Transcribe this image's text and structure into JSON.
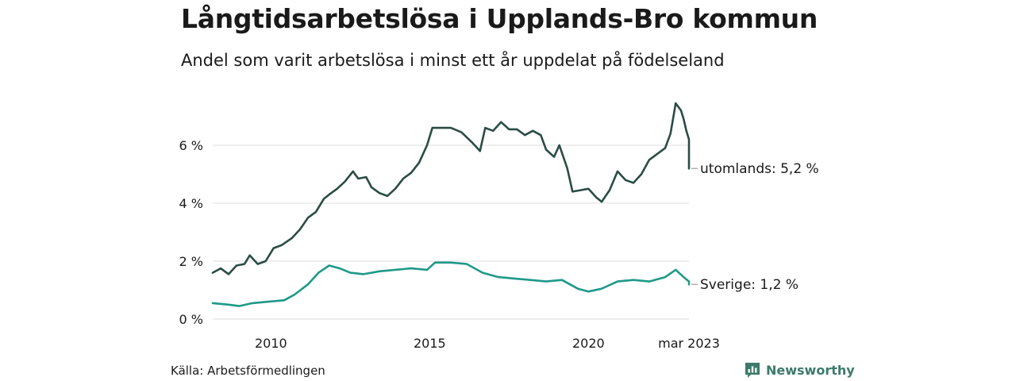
{
  "header": {
    "title": "Långtidsarbetslösa i Upplands-Bro kommun",
    "subtitle": "Andel som varit arbetslösa i minst ett år uppdelat på födelseland"
  },
  "footer": {
    "source": "Källa: Arbetsförmedlingen",
    "brand": "Newsworthy"
  },
  "colors": {
    "foreign_series": "#2b4c45",
    "sweden_series": "#1f9988",
    "grid": "#dddddd",
    "brand": "#3d7a6a"
  },
  "chart_data": {
    "type": "line",
    "x_axis": {
      "range": [
        "2008-03",
        "2023-03"
      ],
      "ticks": [
        {
          "x": "2010-01",
          "label": "2010"
        },
        {
          "x": "2015-01",
          "label": "2015"
        },
        {
          "x": "2020-01",
          "label": "2020"
        },
        {
          "x": "2023-03",
          "label": "mar 2023"
        }
      ]
    },
    "y_axis": {
      "range": [
        0,
        8
      ],
      "ticks": [
        {
          "y": 0,
          "label": "0 %"
        },
        {
          "y": 2,
          "label": "2 %"
        },
        {
          "y": 4,
          "label": "4 %"
        },
        {
          "y": 6,
          "label": "6 %"
        }
      ],
      "grid": true
    },
    "series": [
      {
        "name": "utomlands",
        "end_label": "utomlands: 5,2 %",
        "color": "#2b4c45",
        "points": [
          [
            "2008-03",
            1.6
          ],
          [
            "2008-06",
            1.75
          ],
          [
            "2008-09",
            1.55
          ],
          [
            "2008-12",
            1.85
          ],
          [
            "2009-03",
            1.9
          ],
          [
            "2009-05",
            2.2
          ],
          [
            "2009-08",
            1.9
          ],
          [
            "2009-11",
            2.0
          ],
          [
            "2010-02",
            2.45
          ],
          [
            "2010-05",
            2.55
          ],
          [
            "2010-09",
            2.8
          ],
          [
            "2010-12",
            3.1
          ],
          [
            "2011-03",
            3.5
          ],
          [
            "2011-06",
            3.7
          ],
          [
            "2011-09",
            4.15
          ],
          [
            "2011-11",
            4.3
          ],
          [
            "2012-02",
            4.5
          ],
          [
            "2012-05",
            4.75
          ],
          [
            "2012-08",
            5.1
          ],
          [
            "2012-10",
            4.85
          ],
          [
            "2013-01",
            4.9
          ],
          [
            "2013-03",
            4.55
          ],
          [
            "2013-06",
            4.35
          ],
          [
            "2013-09",
            4.25
          ],
          [
            "2013-12",
            4.5
          ],
          [
            "2014-03",
            4.85
          ],
          [
            "2014-06",
            5.05
          ],
          [
            "2014-09",
            5.4
          ],
          [
            "2014-12",
            6.0
          ],
          [
            "2015-02",
            6.6
          ],
          [
            "2015-05",
            6.6
          ],
          [
            "2015-09",
            6.6
          ],
          [
            "2016-01",
            6.45
          ],
          [
            "2016-05",
            6.1
          ],
          [
            "2016-08",
            5.8
          ],
          [
            "2016-10",
            6.6
          ],
          [
            "2017-01",
            6.5
          ],
          [
            "2017-04",
            6.8
          ],
          [
            "2017-07",
            6.55
          ],
          [
            "2017-10",
            6.55
          ],
          [
            "2018-01",
            6.35
          ],
          [
            "2018-04",
            6.5
          ],
          [
            "2018-07",
            6.35
          ],
          [
            "2018-09",
            5.85
          ],
          [
            "2018-12",
            5.6
          ],
          [
            "2019-02",
            6.0
          ],
          [
            "2019-05",
            5.2
          ],
          [
            "2019-07",
            4.4
          ],
          [
            "2019-10",
            4.45
          ],
          [
            "2020-01",
            4.5
          ],
          [
            "2020-04",
            4.2
          ],
          [
            "2020-06",
            4.05
          ],
          [
            "2020-09",
            4.45
          ],
          [
            "2020-12",
            5.1
          ],
          [
            "2021-03",
            4.8
          ],
          [
            "2021-06",
            4.7
          ],
          [
            "2021-09",
            5.0
          ],
          [
            "2021-12",
            5.5
          ],
          [
            "2022-03",
            5.7
          ],
          [
            "2022-06",
            5.9
          ],
          [
            "2022-08",
            6.4
          ],
          [
            "2022-10",
            7.45
          ],
          [
            "2022-12",
            7.2
          ],
          [
            "2023-01",
            6.9
          ],
          [
            "2023-02",
            6.5
          ],
          [
            "2023-03",
            6.2
          ],
          [
            "2023-03",
            5.2
          ]
        ]
      },
      {
        "name": "Sverige",
        "end_label": "Sverige: 1,2 %",
        "color": "#1f9988",
        "points": [
          [
            "2008-03",
            0.55
          ],
          [
            "2008-09",
            0.5
          ],
          [
            "2009-01",
            0.45
          ],
          [
            "2009-06",
            0.55
          ],
          [
            "2009-12",
            0.6
          ],
          [
            "2010-06",
            0.65
          ],
          [
            "2010-10",
            0.85
          ],
          [
            "2011-03",
            1.2
          ],
          [
            "2011-07",
            1.6
          ],
          [
            "2011-11",
            1.85
          ],
          [
            "2012-03",
            1.75
          ],
          [
            "2012-07",
            1.6
          ],
          [
            "2012-12",
            1.55
          ],
          [
            "2013-06",
            1.65
          ],
          [
            "2013-12",
            1.7
          ],
          [
            "2014-06",
            1.75
          ],
          [
            "2014-12",
            1.7
          ],
          [
            "2015-03",
            1.95
          ],
          [
            "2015-09",
            1.95
          ],
          [
            "2016-03",
            1.9
          ],
          [
            "2016-09",
            1.6
          ],
          [
            "2017-03",
            1.45
          ],
          [
            "2017-09",
            1.4
          ],
          [
            "2018-03",
            1.35
          ],
          [
            "2018-09",
            1.3
          ],
          [
            "2019-03",
            1.35
          ],
          [
            "2019-09",
            1.05
          ],
          [
            "2020-01",
            0.95
          ],
          [
            "2020-06",
            1.05
          ],
          [
            "2020-12",
            1.3
          ],
          [
            "2021-06",
            1.35
          ],
          [
            "2021-12",
            1.3
          ],
          [
            "2022-06",
            1.45
          ],
          [
            "2022-10",
            1.7
          ],
          [
            "2023-01",
            1.45
          ],
          [
            "2023-03",
            1.3
          ],
          [
            "2023-03",
            1.2
          ]
        ]
      }
    ],
    "source": "Källa: Arbetsförmedlingen"
  }
}
